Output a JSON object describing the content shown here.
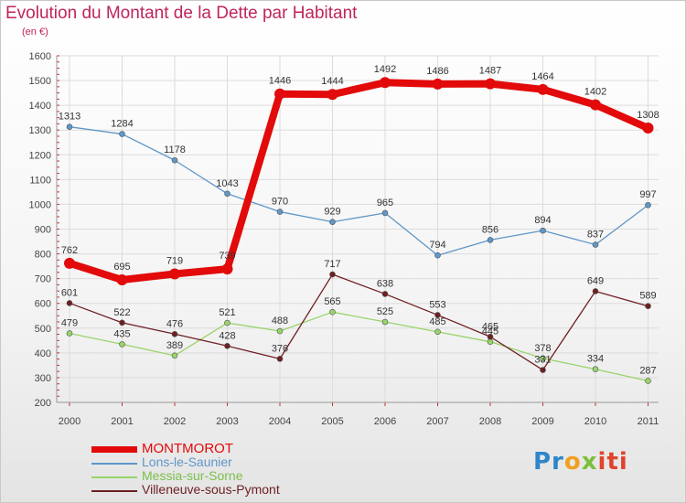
{
  "title": "Evolution du Montant de la Dette par Habitant",
  "subtitle": "(en €)",
  "colors": {
    "MONTMOROT": "#e20a0a",
    "Lons-le-Saunier": "#5f97c8",
    "Messia-sur-Sorne": "#98d46a",
    "Villeneuve-sous-Pymont": "#6e1f22"
  },
  "chart_data": {
    "type": "line",
    "title": "Evolution du Montant de la Dette par Habitant",
    "ylabel": "(en €)",
    "x": [
      "2000",
      "2001",
      "2002",
      "2003",
      "2004",
      "2005",
      "2006",
      "2007",
      "2008",
      "2009",
      "2010",
      "2011"
    ],
    "ylim": [
      200,
      1600
    ],
    "yticks": [
      200,
      300,
      400,
      500,
      600,
      700,
      800,
      900,
      1000,
      1100,
      1200,
      1300,
      1400,
      1500,
      1600
    ],
    "grid": true,
    "legend_position": "bottom-left",
    "series": [
      {
        "name": "MONTMOROT",
        "values": [
          762,
          695,
          719,
          739,
          1446,
          1444,
          1492,
          1486,
          1487,
          1464,
          1402,
          1308
        ]
      },
      {
        "name": "Lons-le-Saunier",
        "values": [
          1313,
          1284,
          1178,
          1043,
          970,
          929,
          965,
          794,
          856,
          894,
          837,
          997
        ]
      },
      {
        "name": "Messia-sur-Sorne",
        "values": [
          479,
          435,
          389,
          521,
          488,
          565,
          525,
          485,
          445,
          378,
          334,
          287
        ]
      },
      {
        "name": "Villeneuve-sous-Pymont",
        "values": [
          601,
          522,
          476,
          428,
          376,
          717,
          638,
          553,
          465,
          331,
          649,
          589
        ]
      }
    ]
  },
  "logo": {
    "p1": "Pr",
    "p2": "o",
    "p3": "x",
    "p4": "iti"
  }
}
